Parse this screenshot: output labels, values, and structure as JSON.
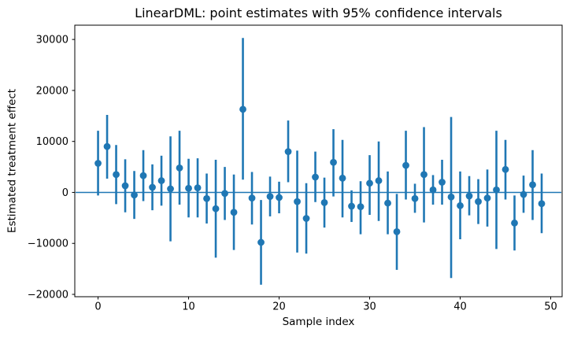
{
  "chart_data": {
    "type": "scatter",
    "subtype": "errorbar",
    "title": "LinearDML: point estimates with 95% confidence intervals",
    "xlabel": "Sample index",
    "ylabel": "Estimated treatment effect",
    "xlim": [
      -2.57,
      51.26
    ],
    "ylim": [
      -20460,
      32800
    ],
    "x_tick_values": [
      0,
      10,
      20,
      30,
      40,
      50
    ],
    "x_tick_labels": [
      "0",
      "10",
      "20",
      "30",
      "40",
      "50"
    ],
    "y_tick_values": [
      -20000,
      -10000,
      0,
      10000,
      20000,
      30000
    ],
    "y_tick_labels": [
      "−20000",
      "−10000",
      "0",
      "10000",
      "20000",
      "30000"
    ],
    "hline_y": 0,
    "accent_color": "#1f77b4",
    "axis_color": "#000000",
    "grid": "off",
    "legend": "none",
    "marker": "circle",
    "capsize": 0,
    "points": [
      {
        "x": 0,
        "y": 5700,
        "ci_low": -600,
        "ci_high": 12100
      },
      {
        "x": 1,
        "y": 9000,
        "ci_low": 2700,
        "ci_high": 15200
      },
      {
        "x": 2,
        "y": 3500,
        "ci_low": -2300,
        "ci_high": 9300
      },
      {
        "x": 3,
        "y": 1300,
        "ci_low": -3900,
        "ci_high": 6500
      },
      {
        "x": 4,
        "y": -500,
        "ci_low": -5200,
        "ci_high": 4200
      },
      {
        "x": 5,
        "y": 3300,
        "ci_low": -1700,
        "ci_high": 8300
      },
      {
        "x": 6,
        "y": 1000,
        "ci_low": -3500,
        "ci_high": 5500
      },
      {
        "x": 7,
        "y": 2300,
        "ci_low": -2600,
        "ci_high": 7200
      },
      {
        "x": 8,
        "y": 700,
        "ci_low": -9600,
        "ci_high": 11000
      },
      {
        "x": 9,
        "y": 4800,
        "ci_low": -2400,
        "ci_high": 12100
      },
      {
        "x": 10,
        "y": 800,
        "ci_low": -4900,
        "ci_high": 6600
      },
      {
        "x": 11,
        "y": 900,
        "ci_low": -4900,
        "ci_high": 6700
      },
      {
        "x": 12,
        "y": -1200,
        "ci_low": -6100,
        "ci_high": 3700
      },
      {
        "x": 13,
        "y": -3200,
        "ci_low": -12800,
        "ci_high": 6400
      },
      {
        "x": 14,
        "y": -200,
        "ci_low": -5400,
        "ci_high": 5000
      },
      {
        "x": 15,
        "y": -3900,
        "ci_low": -11300,
        "ci_high": 3500
      },
      {
        "x": 16,
        "y": 16300,
        "ci_low": 2500,
        "ci_high": 30300
      },
      {
        "x": 17,
        "y": -1100,
        "ci_low": -6300,
        "ci_high": 4000
      },
      {
        "x": 18,
        "y": -9800,
        "ci_low": -18100,
        "ci_high": -1500
      },
      {
        "x": 19,
        "y": -800,
        "ci_low": -4700,
        "ci_high": 3100
      },
      {
        "x": 20,
        "y": -1000,
        "ci_low": -4100,
        "ci_high": 2100
      },
      {
        "x": 21,
        "y": 8000,
        "ci_low": 2000,
        "ci_high": 14100
      },
      {
        "x": 22,
        "y": -1800,
        "ci_low": -11800,
        "ci_high": 8200
      },
      {
        "x": 23,
        "y": -5100,
        "ci_low": -12000,
        "ci_high": 1800
      },
      {
        "x": 24,
        "y": 3000,
        "ci_low": -1900,
        "ci_high": 8000
      },
      {
        "x": 25,
        "y": -2000,
        "ci_low": -6900,
        "ci_high": 2900
      },
      {
        "x": 26,
        "y": 5900,
        "ci_low": -800,
        "ci_high": 12400
      },
      {
        "x": 27,
        "y": 2800,
        "ci_low": -4900,
        "ci_high": 10300
      },
      {
        "x": 28,
        "y": -2700,
        "ci_low": -5800,
        "ci_high": 400
      },
      {
        "x": 29,
        "y": -2800,
        "ci_low": -8200,
        "ci_high": 2200
      },
      {
        "x": 30,
        "y": 1800,
        "ci_low": -4400,
        "ci_high": 7300
      },
      {
        "x": 31,
        "y": 2300,
        "ci_low": -5600,
        "ci_high": 10000
      },
      {
        "x": 32,
        "y": -2100,
        "ci_low": -8200,
        "ci_high": 4100
      },
      {
        "x": 33,
        "y": -7700,
        "ci_low": -15200,
        "ci_high": -300
      },
      {
        "x": 34,
        "y": 5300,
        "ci_low": -1400,
        "ci_high": 12100
      },
      {
        "x": 35,
        "y": -1200,
        "ci_low": -4000,
        "ci_high": 1700
      },
      {
        "x": 36,
        "y": 3500,
        "ci_low": -5900,
        "ci_high": 12800
      },
      {
        "x": 37,
        "y": 500,
        "ci_low": -2400,
        "ci_high": 3400
      },
      {
        "x": 38,
        "y": 2000,
        "ci_low": -2400,
        "ci_high": 6400
      },
      {
        "x": 39,
        "y": -900,
        "ci_low": -16800,
        "ci_high": 14800
      },
      {
        "x": 40,
        "y": -2600,
        "ci_low": -9200,
        "ci_high": 4100
      },
      {
        "x": 41,
        "y": -700,
        "ci_low": -4500,
        "ci_high": 3200
      },
      {
        "x": 42,
        "y": -1800,
        "ci_low": -6200,
        "ci_high": 2600
      },
      {
        "x": 43,
        "y": -1100,
        "ci_low": -6700,
        "ci_high": 4500
      },
      {
        "x": 44,
        "y": 500,
        "ci_low": -11100,
        "ci_high": 12100
      },
      {
        "x": 45,
        "y": 4500,
        "ci_low": -1400,
        "ci_high": 10300
      },
      {
        "x": 46,
        "y": -6000,
        "ci_low": -11400,
        "ci_high": -600
      },
      {
        "x": 47,
        "y": -400,
        "ci_low": -4000,
        "ci_high": 3300
      },
      {
        "x": 48,
        "y": 1500,
        "ci_low": -5400,
        "ci_high": 8300
      },
      {
        "x": 49,
        "y": -2200,
        "ci_low": -8000,
        "ci_high": 3700
      }
    ]
  }
}
